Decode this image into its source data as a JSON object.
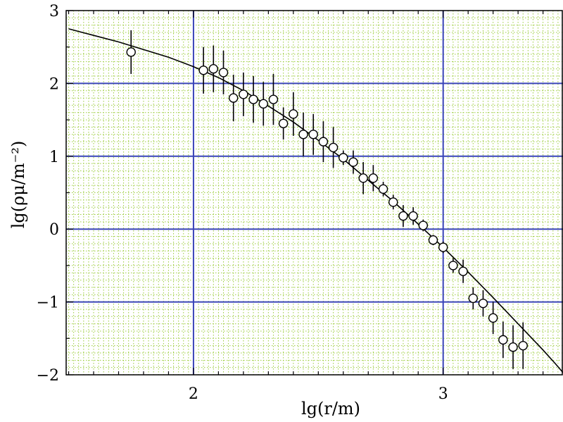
{
  "chart_data": {
    "type": "scatter",
    "xlabel": "lg(r/m)",
    "ylabel": "lg(ρμ/m⁻²)",
    "xlim": [
      1.49,
      3.48
    ],
    "ylim": [
      -2.0,
      3.0
    ],
    "x_ticks": [
      2,
      3
    ],
    "x_tick_labels": [
      "2",
      "3"
    ],
    "y_ticks": [
      -2,
      -1,
      0,
      1,
      2,
      3
    ],
    "y_tick_labels": [
      "−2",
      "−1",
      "0",
      "1",
      "2",
      "3"
    ],
    "grid": true,
    "series": [
      {
        "marker": "open-circle",
        "points": [
          {
            "x": 1.75,
            "y": 2.43,
            "err": 0.3
          },
          {
            "x": 2.04,
            "y": 2.18,
            "err": 0.32
          },
          {
            "x": 2.08,
            "y": 2.2,
            "err": 0.32
          },
          {
            "x": 2.12,
            "y": 2.15,
            "err": 0.3
          },
          {
            "x": 2.16,
            "y": 1.8,
            "err": 0.32
          },
          {
            "x": 2.2,
            "y": 1.85,
            "err": 0.3
          },
          {
            "x": 2.24,
            "y": 1.78,
            "err": 0.32
          },
          {
            "x": 2.28,
            "y": 1.72,
            "err": 0.3
          },
          {
            "x": 2.32,
            "y": 1.78,
            "err": 0.35
          },
          {
            "x": 2.36,
            "y": 1.45,
            "err": 0.22
          },
          {
            "x": 2.4,
            "y": 1.58,
            "err": 0.3
          },
          {
            "x": 2.44,
            "y": 1.3,
            "err": 0.3
          },
          {
            "x": 2.48,
            "y": 1.3,
            "err": 0.28
          },
          {
            "x": 2.52,
            "y": 1.2,
            "err": 0.28
          },
          {
            "x": 2.56,
            "y": 1.12,
            "err": 0.28
          },
          {
            "x": 2.6,
            "y": 0.98,
            "err": 0.1
          },
          {
            "x": 2.64,
            "y": 0.92,
            "err": 0.16
          },
          {
            "x": 2.68,
            "y": 0.7,
            "err": 0.22
          },
          {
            "x": 2.72,
            "y": 0.7,
            "err": 0.18
          },
          {
            "x": 2.76,
            "y": 0.55,
            "err": 0.1
          },
          {
            "x": 2.8,
            "y": 0.37,
            "err": 0.1
          },
          {
            "x": 2.84,
            "y": 0.18,
            "err": 0.15
          },
          {
            "x": 2.88,
            "y": 0.18,
            "err": 0.12
          },
          {
            "x": 2.92,
            "y": 0.05,
            "err": 0.08
          },
          {
            "x": 2.96,
            "y": -0.15,
            "err": 0.07
          },
          {
            "x": 3.0,
            "y": -0.25,
            "err": 0.08
          },
          {
            "x": 3.04,
            "y": -0.5,
            "err": 0.1
          },
          {
            "x": 3.08,
            "y": -0.58,
            "err": 0.16
          },
          {
            "x": 3.12,
            "y": -0.95,
            "err": 0.15
          },
          {
            "x": 3.16,
            "y": -1.02,
            "err": 0.18
          },
          {
            "x": 3.2,
            "y": -1.22,
            "err": 0.22
          },
          {
            "x": 3.24,
            "y": -1.52,
            "err": 0.25
          },
          {
            "x": 3.28,
            "y": -1.62,
            "err": 0.3
          },
          {
            "x": 3.32,
            "y": -1.6,
            "err": 0.32
          }
        ]
      },
      {
        "type": "line",
        "points": [
          {
            "x": 1.5,
            "y": 2.75
          },
          {
            "x": 1.7,
            "y": 2.57
          },
          {
            "x": 1.9,
            "y": 2.36
          },
          {
            "x": 2.0,
            "y": 2.23
          },
          {
            "x": 2.1,
            "y": 2.08
          },
          {
            "x": 2.2,
            "y": 1.9
          },
          {
            "x": 2.3,
            "y": 1.69
          },
          {
            "x": 2.4,
            "y": 1.47
          },
          {
            "x": 2.5,
            "y": 1.22
          },
          {
            "x": 2.6,
            "y": 0.96
          },
          {
            "x": 2.7,
            "y": 0.67
          },
          {
            "x": 2.8,
            "y": 0.38
          },
          {
            "x": 2.9,
            "y": 0.07
          },
          {
            "x": 3.0,
            "y": -0.25
          },
          {
            "x": 3.1,
            "y": -0.59
          },
          {
            "x": 3.2,
            "y": -0.94
          },
          {
            "x": 3.3,
            "y": -1.3
          },
          {
            "x": 3.35,
            "y": -1.48
          },
          {
            "x": 3.4,
            "y": -1.66
          },
          {
            "x": 3.45,
            "y": -1.85
          },
          {
            "x": 3.48,
            "y": -1.97
          }
        ]
      }
    ]
  }
}
